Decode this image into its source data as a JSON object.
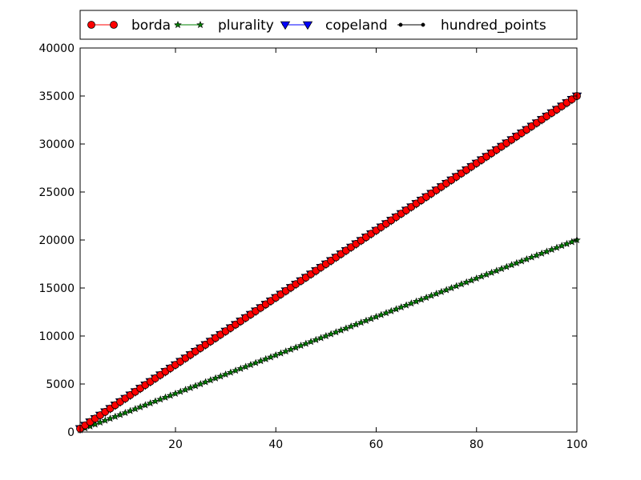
{
  "chart_data": {
    "type": "line",
    "title": "",
    "xlabel": "",
    "ylabel": "",
    "xlim": [
      1,
      100
    ],
    "ylim": [
      0,
      40000
    ],
    "xticks": [
      20,
      40,
      60,
      80,
      100
    ],
    "yticks": [
      0,
      5000,
      10000,
      15000,
      20000,
      25000,
      30000,
      35000,
      40000
    ],
    "grid": false,
    "legend_placement": "top",
    "x": [
      1,
      2,
      3,
      4,
      5,
      6,
      7,
      8,
      9,
      10,
      11,
      12,
      13,
      14,
      15,
      16,
      17,
      18,
      19,
      20,
      21,
      22,
      23,
      24,
      25,
      26,
      27,
      28,
      29,
      30,
      31,
      32,
      33,
      34,
      35,
      36,
      37,
      38,
      39,
      40,
      41,
      42,
      43,
      44,
      45,
      46,
      47,
      48,
      49,
      50,
      51,
      52,
      53,
      54,
      55,
      56,
      57,
      58,
      59,
      60,
      61,
      62,
      63,
      64,
      65,
      66,
      67,
      68,
      69,
      70,
      71,
      72,
      73,
      74,
      75,
      76,
      77,
      78,
      79,
      80,
      81,
      82,
      83,
      84,
      85,
      86,
      87,
      88,
      89,
      90,
      91,
      92,
      93,
      94,
      95,
      96,
      97,
      98,
      99,
      100
    ],
    "series": [
      {
        "name": "borda",
        "color": "#ff0000",
        "marker": "circle",
        "values": [
          350,
          700,
          1050,
          1400,
          1750,
          2100,
          2450,
          2800,
          3150,
          3500,
          3850,
          4200,
          4550,
          4900,
          5250,
          5600,
          5950,
          6300,
          6650,
          7000,
          7350,
          7700,
          8050,
          8400,
          8750,
          9100,
          9450,
          9800,
          10150,
          10500,
          10850,
          11200,
          11550,
          11900,
          12250,
          12600,
          12950,
          13300,
          13650,
          14000,
          14350,
          14700,
          15050,
          15400,
          15750,
          16100,
          16450,
          16800,
          17150,
          17500,
          17850,
          18200,
          18550,
          18900,
          19250,
          19600,
          19950,
          20300,
          20650,
          21000,
          21350,
          21700,
          22050,
          22400,
          22750,
          23100,
          23450,
          23800,
          24150,
          24500,
          24850,
          25200,
          25550,
          25900,
          26250,
          26600,
          26950,
          27300,
          27650,
          28000,
          28350,
          28700,
          29050,
          29400,
          29750,
          30100,
          30450,
          30800,
          31150,
          31500,
          31850,
          32200,
          32550,
          32900,
          33250,
          33600,
          33950,
          34300,
          34650,
          35000
        ]
      },
      {
        "name": "plurality",
        "color": "#008000",
        "marker": "star",
        "values": [
          200,
          400,
          600,
          800,
          1000,
          1200,
          1400,
          1600,
          1800,
          2000,
          2200,
          2400,
          2600,
          2800,
          3000,
          3200,
          3400,
          3600,
          3800,
          4000,
          4200,
          4400,
          4600,
          4800,
          5000,
          5200,
          5400,
          5600,
          5800,
          6000,
          6200,
          6400,
          6600,
          6800,
          7000,
          7200,
          7400,
          7600,
          7800,
          8000,
          8200,
          8400,
          8600,
          8800,
          9000,
          9200,
          9400,
          9600,
          9800,
          10000,
          10200,
          10400,
          10600,
          10800,
          11000,
          11200,
          11400,
          11600,
          11800,
          12000,
          12200,
          12400,
          12600,
          12800,
          13000,
          13200,
          13400,
          13600,
          13800,
          14000,
          14200,
          14400,
          14600,
          14800,
          15000,
          15200,
          15400,
          15600,
          15800,
          16000,
          16200,
          16400,
          16600,
          16800,
          17000,
          17200,
          17400,
          17600,
          17800,
          18000,
          18200,
          18400,
          18600,
          18800,
          19000,
          19200,
          19400,
          19600,
          19800,
          20000
        ]
      },
      {
        "name": "copeland",
        "color": "#0000ff",
        "marker": "triangle-down",
        "values": [
          350,
          700,
          1050,
          1400,
          1750,
          2100,
          2450,
          2800,
          3150,
          3500,
          3850,
          4200,
          4550,
          4900,
          5250,
          5600,
          5950,
          6300,
          6650,
          7000,
          7350,
          7700,
          8050,
          8400,
          8750,
          9100,
          9450,
          9800,
          10150,
          10500,
          10850,
          11200,
          11550,
          11900,
          12250,
          12600,
          12950,
          13300,
          13650,
          14000,
          14350,
          14700,
          15050,
          15400,
          15750,
          16100,
          16450,
          16800,
          17150,
          17500,
          17850,
          18200,
          18550,
          18900,
          19250,
          19600,
          19950,
          20300,
          20650,
          21000,
          21350,
          21700,
          22050,
          22400,
          22750,
          23100,
          23450,
          23800,
          24150,
          24500,
          24850,
          25200,
          25550,
          25900,
          26250,
          26600,
          26950,
          27300,
          27650,
          28000,
          28350,
          28700,
          29050,
          29400,
          29750,
          30100,
          30450,
          30800,
          31150,
          31500,
          31850,
          32200,
          32550,
          32900,
          33250,
          33600,
          33950,
          34300,
          34650,
          35000
        ]
      },
      {
        "name": "hundred_points",
        "color": "#000000",
        "marker": "dot",
        "values": [
          200,
          400,
          600,
          800,
          1000,
          1200,
          1400,
          1600,
          1800,
          2000,
          2200,
          2400,
          2600,
          2800,
          3000,
          3200,
          3400,
          3600,
          3800,
          4000,
          4200,
          4400,
          4600,
          4800,
          5000,
          5200,
          5400,
          5600,
          5800,
          6000,
          6200,
          6400,
          6600,
          6800,
          7000,
          7200,
          7400,
          7600,
          7800,
          8000,
          8200,
          8400,
          8600,
          8800,
          9000,
          9200,
          9400,
          9600,
          9800,
          10000,
          10200,
          10400,
          10600,
          10800,
          11000,
          11200,
          11400,
          11600,
          11800,
          12000,
          12200,
          12400,
          12600,
          12800,
          13000,
          13200,
          13400,
          13600,
          13800,
          14000,
          14200,
          14400,
          14600,
          14800,
          15000,
          15200,
          15400,
          15600,
          15800,
          16000,
          16200,
          16400,
          16600,
          16800,
          17000,
          17200,
          17400,
          17600,
          17800,
          18000,
          18200,
          18400,
          18600,
          18800,
          19000,
          19200,
          19400,
          19600,
          19800,
          20000
        ]
      }
    ]
  }
}
